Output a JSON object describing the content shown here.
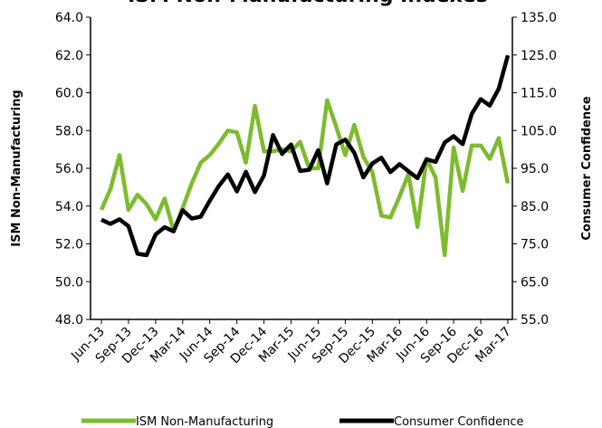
{
  "chart_data": {
    "type": "line",
    "title": "ISM Non-Manufacturing Indexes",
    "y_label": "ISM Non-Manufacturing",
    "y2_label": "Consumer Confidence",
    "categories": [
      "Jun-13",
      null,
      null,
      "Sep-13",
      null,
      null,
      "Dec-13",
      null,
      null,
      "Mar-14",
      null,
      null,
      "Jun-14",
      null,
      null,
      "Sep-14",
      null,
      null,
      "Dec-14",
      null,
      null,
      "Mar-15",
      null,
      null,
      "Jun-15",
      null,
      null,
      "Sep-15",
      null,
      null,
      "Dec-15",
      null,
      null,
      "Mar-16",
      null,
      null,
      "Jun-16",
      null,
      null,
      "Sep-16",
      null,
      null,
      "Dec-16",
      null,
      null,
      "Mar-17"
    ],
    "series": [
      {
        "name": "ISM Non-Manufacturing",
        "color": "#7dbb2f",
        "axis": "y",
        "values": [
          53.8,
          54.9,
          56.7,
          53.8,
          54.6,
          54.1,
          53.3,
          54.4,
          52.7,
          53.9,
          55.2,
          56.3,
          56.7,
          57.3,
          58.0,
          57.9,
          56.3,
          59.3,
          56.9,
          56.9,
          57.0,
          56.9,
          57.4,
          56.0,
          56.0,
          59.6,
          58.2,
          56.7,
          58.3,
          56.6,
          55.8,
          53.5,
          53.4,
          54.5,
          55.7,
          52.9,
          56.5,
          55.5,
          51.4,
          57.1,
          54.8,
          57.2,
          57.2,
          56.5,
          57.6,
          55.2
        ]
      },
      {
        "name": "Consumer Confidence",
        "color": "#000000",
        "axis": "y2",
        "values": [
          81.4,
          80.3,
          81.5,
          79.7,
          72.4,
          72.0,
          77.5,
          79.4,
          78.3,
          83.9,
          81.7,
          82.2,
          86.4,
          90.3,
          93.4,
          88.9,
          94.1,
          88.7,
          93.1,
          103.8,
          98.8,
          101.3,
          94.3,
          94.6,
          99.8,
          91.0,
          101.3,
          102.6,
          99.1,
          92.6,
          96.3,
          97.8,
          94.0,
          96.1,
          94.2,
          92.4,
          97.4,
          96.7,
          101.8,
          103.5,
          101.4,
          109.4,
          113.3,
          111.6,
          116.1,
          124.9
        ]
      }
    ],
    "ylim": [
      48,
      64
    ],
    "yticks": [
      {
        "value": 48,
        "label": "48.0"
      },
      {
        "value": 50,
        "label": "50.0"
      },
      {
        "value": 52,
        "label": "52.0"
      },
      {
        "value": 54,
        "label": "54.0"
      },
      {
        "value": 56,
        "label": "56.0"
      },
      {
        "value": 58,
        "label": "58.0"
      },
      {
        "value": 60,
        "label": "60.0"
      },
      {
        "value": 62,
        "label": "62.0"
      },
      {
        "value": 64,
        "label": "64.0"
      }
    ],
    "y2lim": [
      55,
      135
    ],
    "y2ticks": [
      {
        "value": 55,
        "label": "55.0"
      },
      {
        "value": 65,
        "label": "65.0"
      },
      {
        "value": 75,
        "label": "75.0"
      },
      {
        "value": 85,
        "label": "85.0"
      },
      {
        "value": 95,
        "label": "95.0"
      },
      {
        "value": 105,
        "label": "105.0"
      },
      {
        "value": 115,
        "label": "115.0"
      },
      {
        "value": 125,
        "label": "125.0"
      },
      {
        "value": 135,
        "label": "135.0"
      }
    ],
    "grid": false,
    "legend": "bottom"
  }
}
